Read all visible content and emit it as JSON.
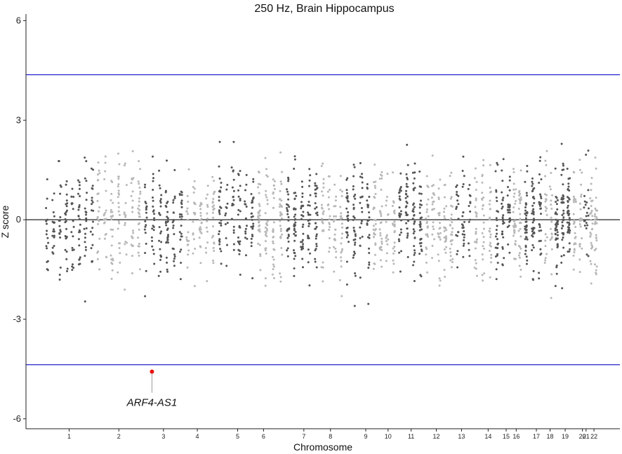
{
  "chart_data": {
    "type": "scatter",
    "title": "250 Hz, Brain Hippocampus",
    "xlabel": "Chromosome",
    "ylabel": "Z score",
    "ylim": [
      -6.3,
      6.2
    ],
    "y_ticks": [
      "-6",
      "-3",
      "0",
      "3",
      "6"
    ],
    "y_tick_values": [
      -6,
      -3,
      0,
      3,
      6
    ],
    "grid": false,
    "colors": {
      "dark": "#555555",
      "light": "#b8b8b8",
      "threshold": "#2020cc",
      "highlight": "#ee1111",
      "zero_line": "#222222"
    },
    "threshold_lines": [
      4.37,
      -4.37
    ],
    "chromosomes": [
      {
        "label": "1",
        "start": 0,
        "end": 71,
        "center": 35,
        "n": 160
      },
      {
        "label": "2",
        "start": 71,
        "end": 137,
        "center": 104,
        "n": 150
      },
      {
        "label": "3",
        "start": 137,
        "end": 195,
        "center": 166,
        "n": 140
      },
      {
        "label": "4",
        "start": 195,
        "end": 240,
        "center": 213,
        "n": 95
      },
      {
        "label": "5",
        "start": 240,
        "end": 294,
        "center": 269,
        "n": 125
      },
      {
        "label": "6",
        "start": 294,
        "end": 334,
        "center": 305,
        "n": 120
      },
      {
        "label": "7",
        "start": 334,
        "end": 383,
        "center": 361,
        "n": 150
      },
      {
        "label": "8",
        "start": 383,
        "end": 417,
        "center": 398,
        "n": 85
      },
      {
        "label": "9",
        "start": 417,
        "end": 455,
        "center": 447,
        "n": 100
      },
      {
        "label": "10",
        "start": 455,
        "end": 490,
        "center": 478,
        "n": 95
      },
      {
        "label": "11",
        "start": 490,
        "end": 528,
        "center": 510,
        "n": 120
      },
      {
        "label": "12",
        "start": 528,
        "end": 570,
        "center": 545,
        "n": 115
      },
      {
        "label": "13",
        "start": 570,
        "end": 595,
        "center": 580,
        "n": 55
      },
      {
        "label": "14",
        "start": 595,
        "end": 625,
        "center": 617,
        "n": 75
      },
      {
        "label": "15",
        "start": 625,
        "end": 650,
        "center": 642,
        "n": 80
      },
      {
        "label": "16",
        "start": 650,
        "end": 665,
        "center": 656,
        "n": 60
      },
      {
        "label": "17",
        "start": 665,
        "end": 694,
        "center": 684,
        "n": 110
      },
      {
        "label": "18",
        "start": 694,
        "end": 708,
        "center": 703,
        "n": 40
      },
      {
        "label": "19",
        "start": 708,
        "end": 733,
        "center": 724,
        "n": 120
      },
      {
        "label": "20",
        "start": 733,
        "end": 750,
        "center": 748,
        "n": 50
      },
      {
        "label": "21",
        "start": 750,
        "end": 757,
        "center": 753,
        "n": 20
      },
      {
        "label": "22",
        "start": 757,
        "end": 770,
        "center": 764,
        "n": 55
      }
    ],
    "x_range": [
      -25,
      800
    ],
    "highlight": {
      "label": "ARF4-AS1",
      "chrom": "3",
      "x": 150,
      "y": -4.58
    }
  }
}
